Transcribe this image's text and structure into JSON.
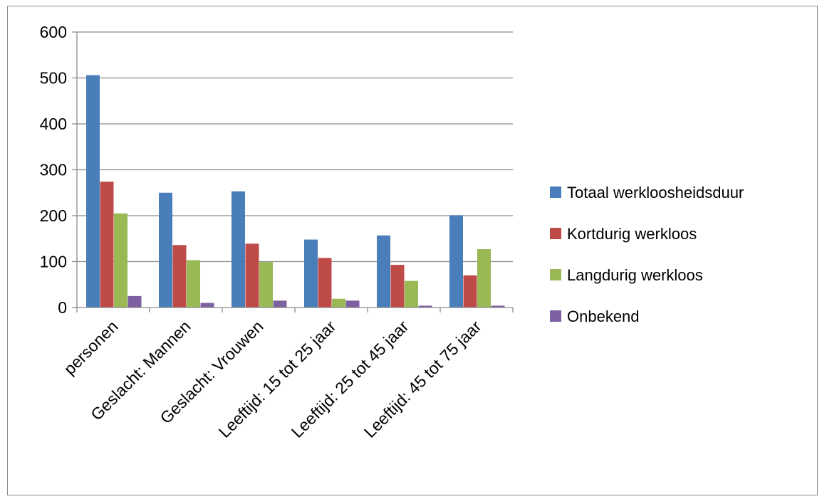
{
  "chart_data": {
    "type": "bar",
    "title": "",
    "xlabel": "",
    "ylabel": "",
    "ylim": [
      0,
      600
    ],
    "yticks": [
      0,
      100,
      200,
      300,
      400,
      500,
      600
    ],
    "grid": true,
    "legend_position": "right",
    "categories": [
      "personen",
      "Geslacht: Mannen",
      "Geslacht: Vrouwen",
      "Leeftijd: 15 tot 25 jaar",
      "Leeftijd: 25 tot 45 jaar",
      "Leeftijd: 45 tot 75 jaar"
    ],
    "series": [
      {
        "name": "Totaal werkloosheidsduur",
        "color": "#4a7ebb",
        "values": [
          506,
          250,
          253,
          148,
          157,
          201
        ]
      },
      {
        "name": "Kortdurig werkloos",
        "color": "#be4b48",
        "values": [
          274,
          136,
          139,
          108,
          93,
          70
        ]
      },
      {
        "name": "Langdurig werkloos",
        "color": "#98b954",
        "values": [
          205,
          103,
          99,
          19,
          58,
          127
        ]
      },
      {
        "name": "Onbekend",
        "color": "#7d60a0",
        "values": [
          25,
          10,
          15,
          15,
          4,
          4
        ]
      }
    ]
  }
}
